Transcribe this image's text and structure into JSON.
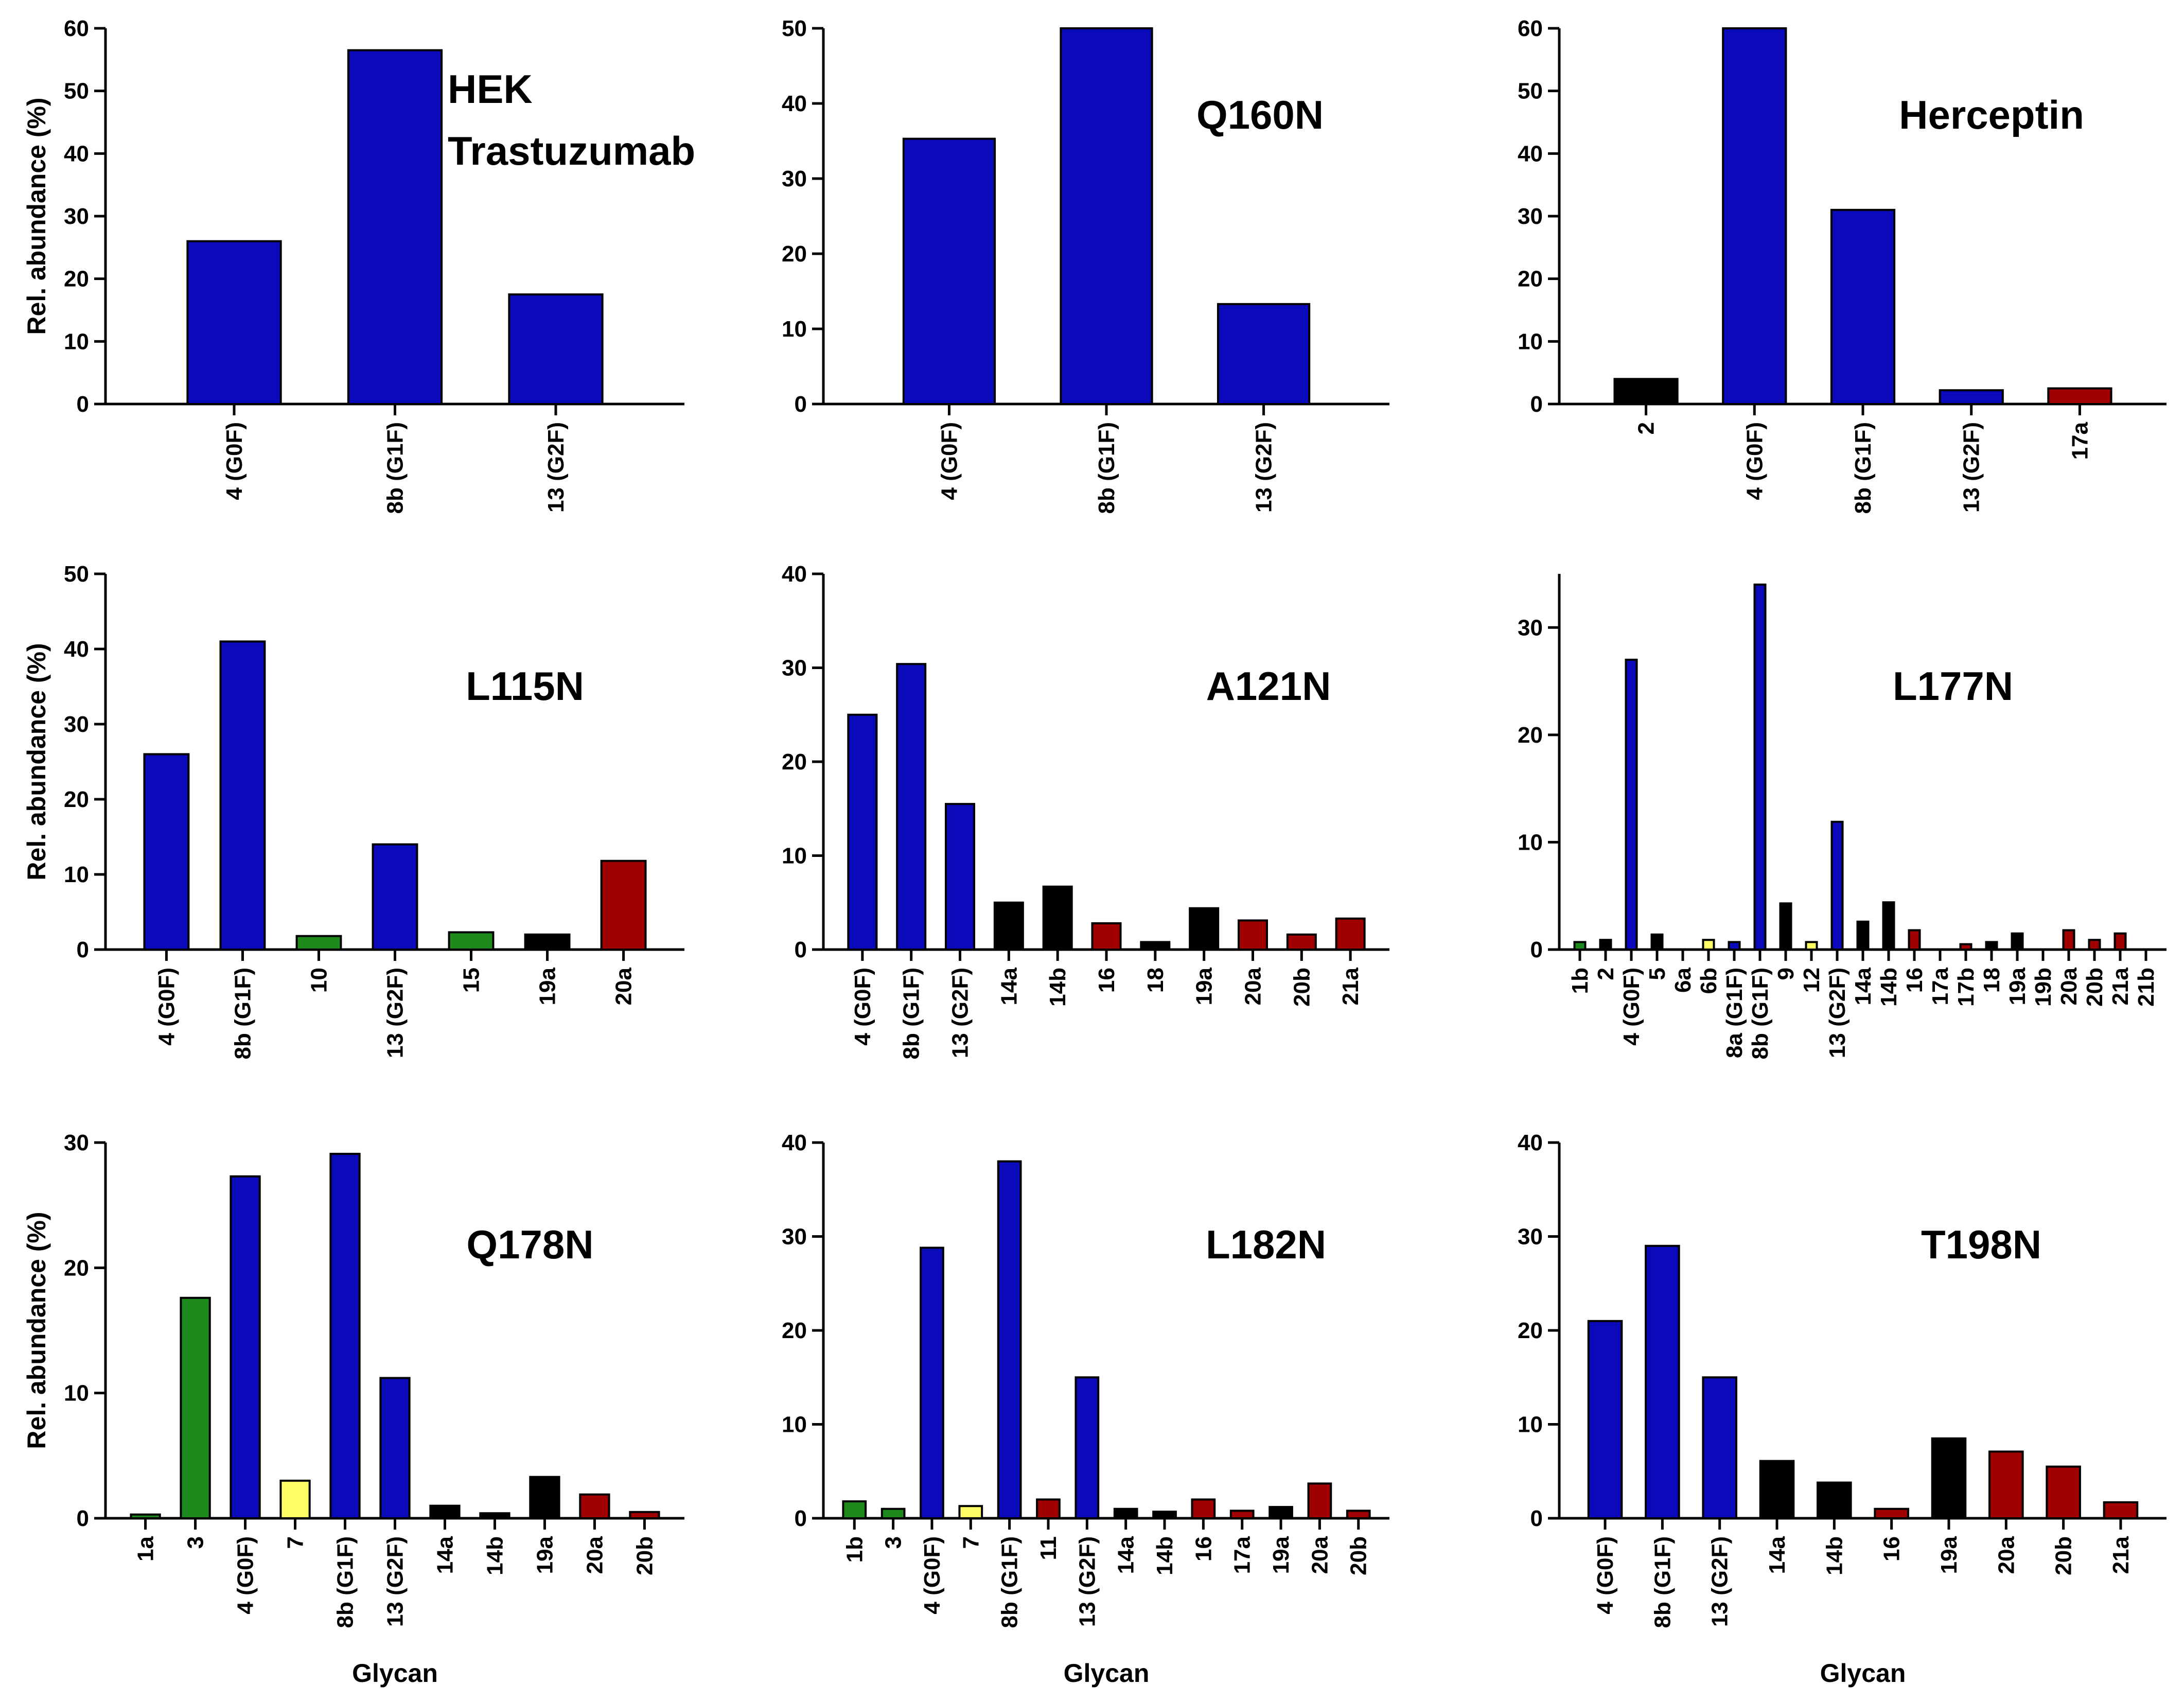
{
  "figure": {
    "y_axis_label": "Rel. abundance (%)",
    "x_axis_label": "Glycan"
  },
  "colors": {
    "blue": "#0a0aba",
    "green": "#1e8a1e",
    "yellow": "#ffff66",
    "black": "#000000",
    "red": "#a00000"
  },
  "chart_data": [
    {
      "type": "bar",
      "title": "HEK\nTrastuzumab",
      "ylabel": "Rel. abundance (%)",
      "xlabel": "",
      "ylim": [
        0,
        60
      ],
      "yticks": [
        0,
        10,
        20,
        30,
        40,
        50,
        60
      ],
      "categories": [
        "4 (G0F)",
        "8b (G1F)",
        "13 (G2F)"
      ],
      "values": [
        26,
        56.5,
        17.5
      ],
      "colors": [
        "blue",
        "blue",
        "blue"
      ]
    },
    {
      "type": "bar",
      "title": "Q160N",
      "ylabel": "",
      "xlabel": "",
      "ylim": [
        0,
        50
      ],
      "yticks": [
        0,
        10,
        20,
        30,
        40,
        50
      ],
      "categories": [
        "4 (G0F)",
        "8b (G1F)",
        "13 (G2F)"
      ],
      "values": [
        35.3,
        50,
        13.3
      ],
      "colors": [
        "blue",
        "blue",
        "blue"
      ]
    },
    {
      "type": "bar",
      "title": "Herceptin",
      "ylabel": "",
      "xlabel": "",
      "ylim": [
        0,
        60
      ],
      "yticks": [
        0,
        10,
        20,
        30,
        40,
        50,
        60
      ],
      "categories": [
        "2",
        "4 (G0F)",
        "8b (G1F)",
        "13 (G2F)",
        "17a"
      ],
      "values": [
        4,
        60,
        31,
        2.2,
        2.5
      ],
      "colors": [
        "black",
        "blue",
        "blue",
        "blue",
        "red"
      ]
    },
    {
      "type": "bar",
      "title": "L115N",
      "ylabel": "Rel. abundance (%)",
      "xlabel": "",
      "ylim": [
        0,
        50
      ],
      "yticks": [
        0,
        10,
        20,
        30,
        40,
        50
      ],
      "categories": [
        "4 (G0F)",
        "8b (G1F)",
        "10",
        "13 (G2F)",
        "15",
        "19a",
        "20a"
      ],
      "values": [
        26,
        41,
        1.8,
        14,
        2.3,
        2,
        11.8
      ],
      "colors": [
        "blue",
        "blue",
        "green",
        "blue",
        "green",
        "black",
        "red"
      ]
    },
    {
      "type": "bar",
      "title": "A121N",
      "ylabel": "",
      "xlabel": "",
      "ylim": [
        0,
        40
      ],
      "yticks": [
        0,
        10,
        20,
        30,
        40
      ],
      "categories": [
        "4 (G0F)",
        "8b (G1F)",
        "13 (G2F)",
        "14a",
        "14b",
        "16",
        "18",
        "19a",
        "20a",
        "20b",
        "21a"
      ],
      "values": [
        25,
        30.4,
        15.5,
        5,
        6.7,
        2.8,
        0.8,
        4.4,
        3.1,
        1.6,
        3.3
      ],
      "colors": [
        "blue",
        "blue",
        "blue",
        "black",
        "black",
        "red",
        "black",
        "black",
        "red",
        "red",
        "red"
      ]
    },
    {
      "type": "bar",
      "title": "L177N",
      "ylabel": "",
      "xlabel": "",
      "ylim": [
        0,
        35
      ],
      "yticks": [
        0,
        10,
        20,
        30
      ],
      "categories": [
        "1b",
        "2",
        "4 (G0F)",
        "5",
        "6a",
        "6b",
        "8a (G1F)",
        "8b (G1F)",
        "9",
        "12",
        "13 (G2F)",
        "14a",
        "14b",
        "16",
        "17a",
        "17b",
        "18",
        "19a",
        "19b",
        "20a",
        "20b",
        "21a",
        "21b"
      ],
      "values": [
        0.7,
        0.9,
        27,
        1.4,
        0,
        0.9,
        0.7,
        34,
        4.3,
        0.7,
        11.9,
        2.6,
        4.4,
        1.8,
        0,
        0.5,
        0.7,
        1.5,
        0,
        1.8,
        0.9,
        1.5,
        0
      ],
      "colors": [
        "green",
        "black",
        "blue",
        "black",
        "black",
        "yellow",
        "blue",
        "blue",
        "black",
        "yellow",
        "blue",
        "black",
        "black",
        "red",
        "red",
        "red",
        "black",
        "black",
        "black",
        "red",
        "red",
        "red",
        "red"
      ]
    },
    {
      "type": "bar",
      "title": "Q178N",
      "ylabel": "Rel. abundance (%)",
      "xlabel": "Glycan",
      "ylim": [
        0,
        30
      ],
      "yticks": [
        0,
        10,
        20,
        30
      ],
      "categories": [
        "1a",
        "3",
        "4 (G0F)",
        "7",
        "8b (G1F)",
        "13 (G2F)",
        "14a",
        "14b",
        "19a",
        "20a",
        "20b"
      ],
      "values": [
        0.3,
        17.6,
        27.3,
        3,
        29.1,
        11.2,
        1,
        0.4,
        3.3,
        1.9,
        0.5
      ],
      "colors": [
        "green",
        "green",
        "blue",
        "yellow",
        "blue",
        "blue",
        "black",
        "black",
        "black",
        "red",
        "red"
      ]
    },
    {
      "type": "bar",
      "title": "L182N",
      "ylabel": "",
      "xlabel": "Glycan",
      "ylim": [
        0,
        40
      ],
      "yticks": [
        0,
        10,
        20,
        30,
        40
      ],
      "categories": [
        "1b",
        "3",
        "4 (G0F)",
        "7",
        "8b (G1F)",
        "11",
        "13 (G2F)",
        "14a",
        "14b",
        "16",
        "17a",
        "19a",
        "20a",
        "20b"
      ],
      "values": [
        1.8,
        1,
        28.8,
        1.3,
        38,
        2,
        15,
        1,
        0.7,
        2,
        0.8,
        1.2,
        3.7,
        0.8
      ],
      "colors": [
        "green",
        "green",
        "blue",
        "yellow",
        "blue",
        "red",
        "blue",
        "black",
        "black",
        "red",
        "red",
        "black",
        "red",
        "red"
      ]
    },
    {
      "type": "bar",
      "title": "T198N",
      "ylabel": "",
      "xlabel": "Glycan",
      "ylim": [
        0,
        40
      ],
      "yticks": [
        0,
        10,
        20,
        30,
        40
      ],
      "categories": [
        "4 (G0F)",
        "8b (G1F)",
        "13 (G2F)",
        "14a",
        "14b",
        "16",
        "19a",
        "20a",
        "20b",
        "21a"
      ],
      "values": [
        21,
        29,
        15,
        6.1,
        3.8,
        1,
        8.5,
        7.1,
        5.5,
        1.7
      ],
      "colors": [
        "blue",
        "blue",
        "blue",
        "black",
        "black",
        "red",
        "black",
        "red",
        "red",
        "red"
      ]
    }
  ]
}
